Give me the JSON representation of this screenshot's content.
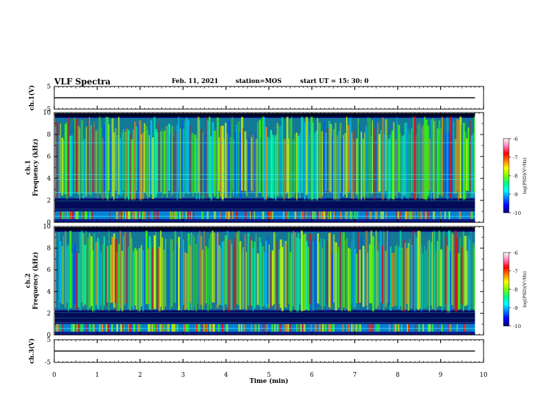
{
  "header": {
    "title": "VLF Spectra",
    "date": "Feb. 11, 2021",
    "station": "station=MOS",
    "start": "start UT =  15: 30: 0"
  },
  "chart_data": [
    {
      "type": "line",
      "panel": "ch1-voltage",
      "ylabel": "ch.1(V)",
      "yticks": [
        "5",
        "-5"
      ],
      "ylim": [
        -5,
        5
      ],
      "xlim": [
        0,
        10
      ],
      "series": [
        {
          "x": [
            0,
            9.8
          ],
          "values": [
            0,
            0
          ]
        }
      ]
    },
    {
      "type": "heatmap",
      "panel": "ch1-spectrogram",
      "ylabel": "ch.1\nFrequency (kHz)",
      "yticks": [
        "0",
        "2",
        "4",
        "6",
        "8",
        "10"
      ],
      "ylim": [
        0,
        10
      ],
      "xlim": [
        0,
        10
      ],
      "data_xmax": 9.8,
      "colorbar": {
        "label": "log(PSD)(V²/Hz)",
        "ticks": [
          "-6",
          "-7",
          "-8",
          "-9",
          "-10"
        ],
        "range": [
          -10,
          -6
        ]
      }
    },
    {
      "type": "heatmap",
      "panel": "ch2-spectrogram",
      "ylabel": "ch.2\nFrequency (kHz)",
      "yticks": [
        "0",
        "2",
        "4",
        "6",
        "8",
        "10"
      ],
      "ylim": [
        0,
        10
      ],
      "xlim": [
        0,
        10
      ],
      "data_xmax": 9.8,
      "colorbar": {
        "label": "log(PSD)(V²/Hz)",
        "ticks": [
          "-6",
          "-7",
          "-8",
          "-9",
          "-10"
        ],
        "range": [
          -10,
          -6
        ]
      }
    },
    {
      "type": "line",
      "panel": "ch3-voltage",
      "ylabel": "ch.3(V)",
      "yticks": [
        "5",
        "-5"
      ],
      "ylim": [
        -5,
        5
      ],
      "xlim": [
        0,
        10
      ],
      "series": [
        {
          "x": [
            0,
            9.8
          ],
          "values": [
            0,
            0
          ]
        }
      ]
    }
  ],
  "xaxis": {
    "label": "Time (min)",
    "ticks": [
      "0",
      "1",
      "2",
      "3",
      "4",
      "5",
      "6",
      "7",
      "8",
      "9",
      "10"
    ]
  },
  "colormap": [
    "#000000",
    "#000050",
    "#0000c8",
    "#0050ff",
    "#00c8ff",
    "#00ffa0",
    "#40ff00",
    "#d2ff00",
    "#ff8c00",
    "#ff0000",
    "#ff60a0",
    "#ffffff"
  ]
}
